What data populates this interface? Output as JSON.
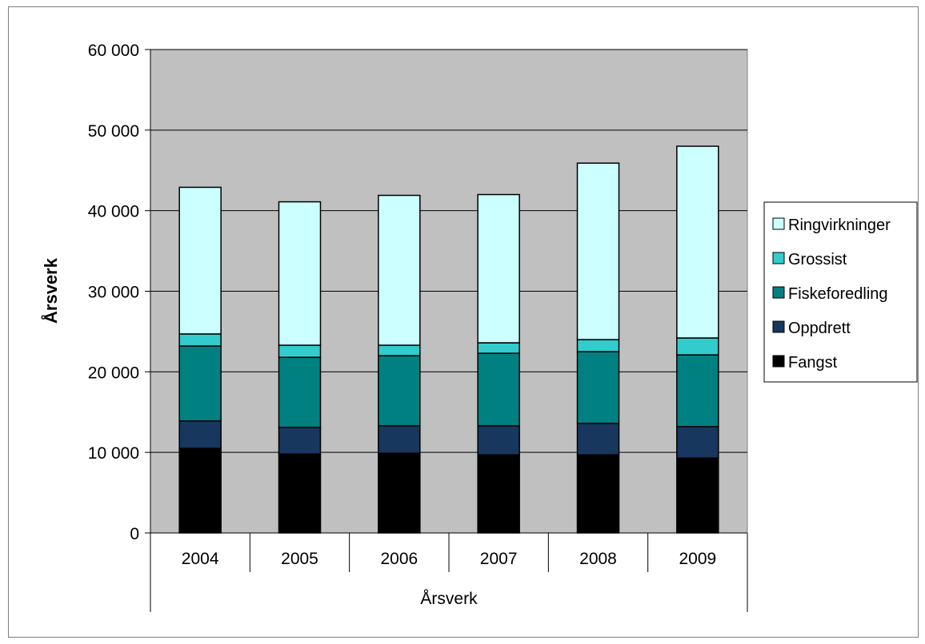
{
  "chart_data": {
    "type": "bar",
    "stacked": true,
    "categories": [
      "2004",
      "2005",
      "2006",
      "2007",
      "2008",
      "2009"
    ],
    "xlabel": "Årsverk",
    "ylabel": "Årsverk",
    "ylim": [
      0,
      60000
    ],
    "yticks": [
      0,
      10000,
      20000,
      30000,
      40000,
      50000,
      60000
    ],
    "ytick_labels": [
      "0",
      "10 000",
      "20 000",
      "30 000",
      "40 000",
      "50 000",
      "60 000"
    ],
    "grid": true,
    "legend_position": "right",
    "series": [
      {
        "name": "Fangst",
        "color": "#000000",
        "values": [
          10500,
          9800,
          9900,
          9700,
          9700,
          9300
        ]
      },
      {
        "name": "Oppdrett",
        "color": "#17375e",
        "values": [
          3400,
          3300,
          3400,
          3600,
          3900,
          3900
        ]
      },
      {
        "name": "Fiskeforedling",
        "color": "#008080",
        "values": [
          9300,
          8700,
          8700,
          9000,
          8900,
          8900
        ]
      },
      {
        "name": "Grossist",
        "color": "#33cccc",
        "values": [
          1500,
          1500,
          1300,
          1300,
          1500,
          2100
        ]
      },
      {
        "name": "Ringvirkninger",
        "color": "#ccffff",
        "values": [
          18200,
          17800,
          18600,
          18400,
          21900,
          23800
        ]
      }
    ]
  }
}
